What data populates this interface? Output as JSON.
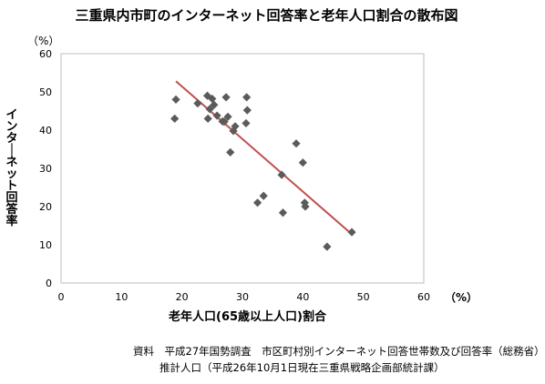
{
  "chart_data": {
    "type": "scatter",
    "title": "三重県内市町のインターネット回答率と老年人口割合の散布図",
    "xlabel": "老年人口(65歳以上人口)割合",
    "ylabel": "インターネット回答率",
    "x_unit": "（%）",
    "y_unit": "（%）",
    "xlim": [
      0,
      60
    ],
    "ylim": [
      0,
      60
    ],
    "xticks": [
      "0",
      "10",
      "20",
      "30",
      "40",
      "50",
      "60"
    ],
    "yticks": [
      "0",
      "10",
      "20",
      "30",
      "40",
      "50",
      "60"
    ],
    "grid": false,
    "series": [
      {
        "marker_color": "#5b5b5b",
        "points": [
          {
            "x": 18.8,
            "y": 43.0
          },
          {
            "x": 19.0,
            "y": 48.0
          },
          {
            "x": 22.6,
            "y": 47.0
          },
          {
            "x": 24.2,
            "y": 49.0
          },
          {
            "x": 24.6,
            "y": 45.5
          },
          {
            "x": 24.3,
            "y": 43.0
          },
          {
            "x": 25.0,
            "y": 48.2
          },
          {
            "x": 25.3,
            "y": 46.6
          },
          {
            "x": 25.8,
            "y": 43.8
          },
          {
            "x": 26.7,
            "y": 42.3
          },
          {
            "x": 27.3,
            "y": 48.6
          },
          {
            "x": 27.6,
            "y": 43.5
          },
          {
            "x": 27.0,
            "y": 42.2
          },
          {
            "x": 28.0,
            "y": 34.2
          },
          {
            "x": 28.5,
            "y": 39.8
          },
          {
            "x": 28.8,
            "y": 41.0
          },
          {
            "x": 30.7,
            "y": 48.6
          },
          {
            "x": 30.8,
            "y": 45.2
          },
          {
            "x": 30.6,
            "y": 41.8
          },
          {
            "x": 32.5,
            "y": 21.0
          },
          {
            "x": 33.5,
            "y": 22.8
          },
          {
            "x": 36.5,
            "y": 28.3
          },
          {
            "x": 36.7,
            "y": 18.4
          },
          {
            "x": 38.9,
            "y": 36.5
          },
          {
            "x": 40.0,
            "y": 31.5
          },
          {
            "x": 40.3,
            "y": 21.0
          },
          {
            "x": 40.4,
            "y": 20.0
          },
          {
            "x": 44.0,
            "y": 9.5
          },
          {
            "x": 48.1,
            "y": 13.3
          }
        ]
      }
    ],
    "trendline": {
      "x": [
        19.0,
        48.0
      ],
      "y": [
        52.8,
        12.9
      ],
      "color": "#c0504d"
    }
  },
  "notes": {
    "line1": "資料　平成27年国勢調査　市区町村別インターネット回答世帯数及び回答率（総務省）",
    "line2": "推計人口（平成26年10月1日現在三重県戦略企画部統計課）"
  }
}
